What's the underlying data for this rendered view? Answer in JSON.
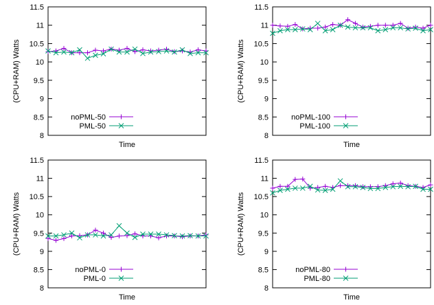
{
  "colors": {
    "noPML": "#9400d3",
    "PML": "#009e73",
    "axis": "#000000"
  },
  "chart_data": [
    {
      "type": "line",
      "xlabel": "Time",
      "ylabel": "(CPU+RAM) Watts",
      "ylim": [
        8,
        11.5
      ],
      "yticks": [
        "8",
        "8.5",
        "9",
        "9.5",
        "10",
        "10.5",
        "11",
        "11.5"
      ],
      "legend": "bottom-left",
      "series": [
        {
          "name": "noPML-50",
          "marker": "plus",
          "values": [
            10.28,
            10.3,
            10.37,
            10.25,
            10.25,
            10.25,
            10.32,
            10.3,
            10.35,
            10.32,
            10.37,
            10.28,
            10.33,
            10.3,
            10.32,
            10.35,
            10.28,
            10.3,
            10.27,
            10.33,
            10.3
          ]
        },
        {
          "name": "PML-50",
          "marker": "cross",
          "values": [
            10.3,
            10.25,
            10.27,
            10.25,
            10.33,
            10.1,
            10.18,
            10.22,
            10.35,
            10.27,
            10.27,
            10.35,
            10.23,
            10.27,
            10.28,
            10.3,
            10.27,
            10.33,
            10.23,
            10.25,
            10.25
          ]
        }
      ]
    },
    {
      "type": "line",
      "xlabel": "Time",
      "ylabel": "(CPU+RAM) Watts",
      "ylim": [
        8,
        11.5
      ],
      "yticks": [
        "8",
        "8.5",
        "9",
        "9.5",
        "10",
        "10.5",
        "11",
        "11.5"
      ],
      "legend": "bottom-left",
      "series": [
        {
          "name": "noPML-100",
          "marker": "plus",
          "values": [
            11.0,
            10.98,
            10.97,
            11.02,
            10.9,
            10.92,
            10.92,
            10.95,
            11.02,
            11.0,
            11.15,
            11.05,
            10.95,
            10.97,
            11.0,
            11.0,
            11.0,
            11.05,
            10.92,
            10.95,
            10.92,
            11.0
          ]
        },
        {
          "name": "PML-100",
          "marker": "cross",
          "values": [
            10.78,
            10.85,
            10.88,
            10.88,
            10.9,
            10.88,
            11.05,
            10.85,
            10.88,
            11.0,
            10.95,
            10.93,
            10.93,
            10.93,
            10.85,
            10.88,
            10.93,
            10.93,
            10.9,
            10.92,
            10.85,
            10.88
          ]
        }
      ]
    },
    {
      "type": "line",
      "xlabel": "Time",
      "ylabel": "(CPU+RAM) Watts",
      "ylim": [
        8,
        11.5
      ],
      "yticks": [
        "8",
        "8.5",
        "9",
        "9.5",
        "10",
        "10.5",
        "11",
        "11.5"
      ],
      "legend": "bottom-left",
      "series": [
        {
          "name": "noPML-0",
          "marker": "plus",
          "values": [
            9.35,
            9.3,
            9.35,
            9.42,
            9.43,
            9.45,
            9.58,
            9.5,
            9.38,
            9.42,
            9.43,
            9.48,
            9.42,
            9.42,
            9.37,
            9.42,
            9.42,
            9.4,
            9.42,
            9.42,
            9.45
          ]
        },
        {
          "name": "PML-0",
          "marker": "cross",
          "values": [
            9.42,
            9.42,
            9.45,
            9.5,
            9.37,
            9.45,
            9.45,
            9.42,
            9.45,
            9.7,
            9.5,
            9.38,
            9.47,
            9.47,
            9.47,
            9.45,
            9.43,
            9.42,
            9.43,
            9.42,
            9.42
          ]
        }
      ]
    },
    {
      "type": "line",
      "xlabel": "Time",
      "ylabel": "(CPU+RAM) Watts",
      "ylim": [
        8,
        11.5
      ],
      "yticks": [
        "8",
        "8.5",
        "9",
        "9.5",
        "10",
        "10.5",
        "11",
        "11.5"
      ],
      "legend": "bottom-left",
      "series": [
        {
          "name": "noPML-80",
          "marker": "plus",
          "values": [
            10.73,
            10.78,
            10.78,
            10.97,
            10.98,
            10.73,
            10.75,
            10.78,
            10.75,
            10.8,
            10.8,
            10.8,
            10.77,
            10.77,
            10.77,
            10.8,
            10.85,
            10.87,
            10.8,
            10.78,
            10.75,
            10.82
          ]
        },
        {
          "name": "PML-80",
          "marker": "cross",
          "values": [
            10.6,
            10.67,
            10.7,
            10.73,
            10.73,
            10.78,
            10.68,
            10.67,
            10.7,
            10.93,
            10.77,
            10.77,
            10.75,
            10.72,
            10.72,
            10.75,
            10.77,
            10.78,
            10.77,
            10.78,
            10.7,
            10.7
          ]
        }
      ]
    }
  ]
}
